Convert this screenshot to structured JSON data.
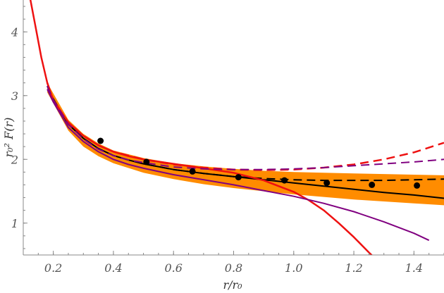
{
  "chart_data": {
    "type": "line",
    "title": "",
    "xlabel": "r/r₀",
    "ylabel": "r₀² F(r)",
    "xlim": [
      0.1,
      1.5
    ],
    "ylim": [
      0.5,
      4.5
    ],
    "x_ticks": [
      0.2,
      0.4,
      0.6,
      0.8,
      1.0,
      1.2,
      1.4
    ],
    "x_tick_labels": [
      "0.2",
      "0.4",
      "0.6",
      "0.8",
      "1.0",
      "1.2",
      "1.4"
    ],
    "y_ticks": [
      1,
      2,
      3,
      4
    ],
    "y_tick_labels": [
      "1",
      "2",
      "3",
      "4"
    ],
    "grid": false,
    "legend": "none",
    "band": {
      "color": "#ff8c00",
      "x": [
        0.18,
        0.25,
        0.3,
        0.35,
        0.4,
        0.5,
        0.6,
        0.7,
        0.8,
        0.9,
        1.0,
        1.1,
        1.2,
        1.3,
        1.4,
        1.5
      ],
      "upper": [
        3.2,
        2.62,
        2.4,
        2.25,
        2.14,
        2.02,
        1.94,
        1.89,
        1.85,
        1.82,
        1.8,
        1.79,
        1.78,
        1.77,
        1.76,
        1.75
      ],
      "lower": [
        3.05,
        2.45,
        2.2,
        2.05,
        1.94,
        1.79,
        1.69,
        1.61,
        1.55,
        1.5,
        1.45,
        1.41,
        1.37,
        1.34,
        1.31,
        1.28
      ]
    },
    "series": [
      {
        "color": "#000000",
        "dash": "solid",
        "width": 2,
        "x": [
          0.18,
          0.2,
          0.25,
          0.3,
          0.35,
          0.4,
          0.45,
          0.5,
          0.6,
          0.7,
          0.8,
          0.9,
          1.0,
          1.1,
          1.2,
          1.3,
          1.4,
          1.5
        ],
        "y": [
          3.15,
          2.95,
          2.55,
          2.33,
          2.17,
          2.06,
          1.99,
          1.93,
          1.84,
          1.78,
          1.73,
          1.68,
          1.63,
          1.58,
          1.53,
          1.48,
          1.44,
          1.39
        ]
      },
      {
        "color": "#000000",
        "dash": "dashed",
        "width": 2,
        "x": [
          0.18,
          0.2,
          0.25,
          0.3,
          0.35,
          0.4,
          0.45,
          0.5,
          0.6,
          0.7,
          0.8,
          0.9,
          1.0,
          1.1,
          1.2,
          1.3,
          1.4,
          1.5
        ],
        "y": [
          3.15,
          2.95,
          2.55,
          2.33,
          2.17,
          2.06,
          1.99,
          1.93,
          1.84,
          1.78,
          1.73,
          1.7,
          1.68,
          1.67,
          1.67,
          1.67,
          1.68,
          1.69
        ]
      },
      {
        "color": "#ee1111",
        "dash": "solid",
        "width": 2.5,
        "x": [
          0.12,
          0.14,
          0.16,
          0.18,
          0.2,
          0.25,
          0.3,
          0.35,
          0.4,
          0.45,
          0.5,
          0.6,
          0.7,
          0.8,
          0.9,
          1.0,
          1.05,
          1.1,
          1.15,
          1.2,
          1.25,
          1.27
        ],
        "y": [
          4.6,
          4.1,
          3.6,
          3.2,
          2.93,
          2.58,
          2.37,
          2.22,
          2.12,
          2.05,
          2.0,
          1.93,
          1.86,
          1.79,
          1.67,
          1.49,
          1.36,
          1.2,
          1.0,
          0.78,
          0.54,
          0.45
        ]
      },
      {
        "color": "#ee1111",
        "dash": "dashed",
        "width": 2.5,
        "x": [
          0.18,
          0.2,
          0.25,
          0.3,
          0.35,
          0.4,
          0.5,
          0.6,
          0.7,
          0.8,
          0.9,
          1.0,
          1.1,
          1.2,
          1.3,
          1.4,
          1.5
        ],
        "y": [
          3.2,
          2.93,
          2.58,
          2.37,
          2.22,
          2.12,
          2.0,
          1.92,
          1.87,
          1.84,
          1.83,
          1.84,
          1.87,
          1.92,
          2.0,
          2.11,
          2.26
        ]
      },
      {
        "color": "#800080",
        "dash": "solid",
        "width": 2,
        "x": [
          0.18,
          0.2,
          0.25,
          0.3,
          0.35,
          0.4,
          0.45,
          0.5,
          0.6,
          0.7,
          0.8,
          0.9,
          1.0,
          1.1,
          1.2,
          1.3,
          1.4,
          1.45
        ],
        "y": [
          3.1,
          2.9,
          2.5,
          2.28,
          2.12,
          2.0,
          1.92,
          1.86,
          1.76,
          1.68,
          1.6,
          1.51,
          1.42,
          1.31,
          1.18,
          1.02,
          0.84,
          0.73
        ]
      },
      {
        "color": "#800080",
        "dash": "dashed",
        "width": 2,
        "x": [
          0.18,
          0.2,
          0.25,
          0.3,
          0.35,
          0.4,
          0.45,
          0.5,
          0.6,
          0.7,
          0.8,
          0.9,
          1.0,
          1.1,
          1.2,
          1.3,
          1.4,
          1.5
        ],
        "y": [
          3.15,
          2.93,
          2.55,
          2.32,
          2.16,
          2.06,
          1.99,
          1.95,
          1.88,
          1.85,
          1.84,
          1.84,
          1.85,
          1.87,
          1.9,
          1.93,
          1.96,
          2.0
        ]
      }
    ],
    "points": {
      "color": "#000000",
      "x": [
        0.357,
        0.51,
        0.663,
        0.816,
        0.969,
        1.11,
        1.26,
        1.41
      ],
      "y": [
        2.29,
        1.96,
        1.81,
        1.72,
        1.67,
        1.63,
        1.6,
        1.59
      ]
    }
  }
}
